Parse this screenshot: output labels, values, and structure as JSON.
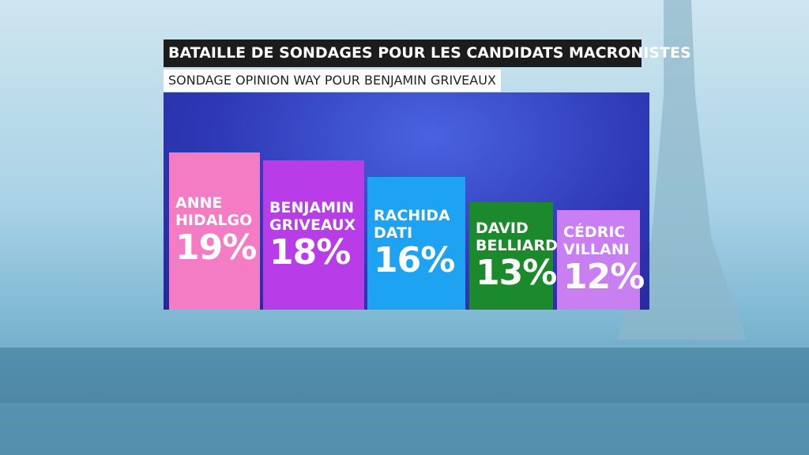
{
  "chart_data": {
    "type": "bar",
    "title": "BATAILLE DE SONDAGES POUR LES CANDIDATS MACRONISTES",
    "subtitle": "SONDAGE OPINION WAY POUR BENJAMIN GRIVEAUX",
    "categories": [
      "ANNE HIDALGO",
      "BENJAMIN GRIVEAUX",
      "RACHIDA DATI",
      "DAVID BELLIARD",
      "CÉDRIC VILLANI"
    ],
    "values": [
      19,
      18,
      16,
      13,
      12
    ],
    "value_labels": [
      "19%",
      "18%",
      "16%",
      "13%",
      "12%"
    ],
    "colors": [
      "#f47cc4",
      "#b83ce8",
      "#1ea2f2",
      "#1b8a2c",
      "#c97ef2"
    ]
  }
}
